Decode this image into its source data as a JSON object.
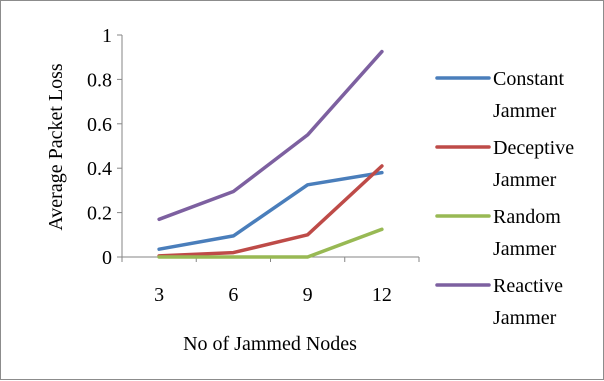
{
  "chart_data": {
    "type": "line",
    "title": "",
    "xlabel": "No of Jammed Nodes",
    "ylabel": "Average Packet Loss",
    "categories": [
      "3",
      "6",
      "9",
      "12"
    ],
    "ylim": [
      0,
      1
    ],
    "yticks": [
      0,
      0.2,
      0.4,
      0.6,
      0.8,
      1
    ],
    "ytick_labels": [
      "0",
      "0.2",
      "0.4",
      "0.6",
      "0.8",
      "1"
    ],
    "grid": false,
    "legend": "right",
    "series": [
      {
        "name_lines": [
          "Constant",
          "Jammer"
        ],
        "name": "Constant Jammer",
        "color": "#4a7ebb",
        "values": [
          0.035,
          0.095,
          0.325,
          0.38
        ]
      },
      {
        "name_lines": [
          "Deceptive",
          "Jammer"
        ],
        "name": "Deceptive Jammer",
        "color": "#be4b48",
        "values": [
          0.005,
          0.02,
          0.1,
          0.41
        ]
      },
      {
        "name_lines": [
          "Random",
          "Jammer"
        ],
        "name": "Random Jammer",
        "color": "#98b954",
        "values": [
          0.0,
          0.0,
          0.0,
          0.125
        ]
      },
      {
        "name_lines": [
          "Reactive",
          "Jammer"
        ],
        "name": "Reactive Jammer",
        "color": "#7d60a0",
        "values": [
          0.17,
          0.295,
          0.55,
          0.925
        ]
      }
    ]
  }
}
